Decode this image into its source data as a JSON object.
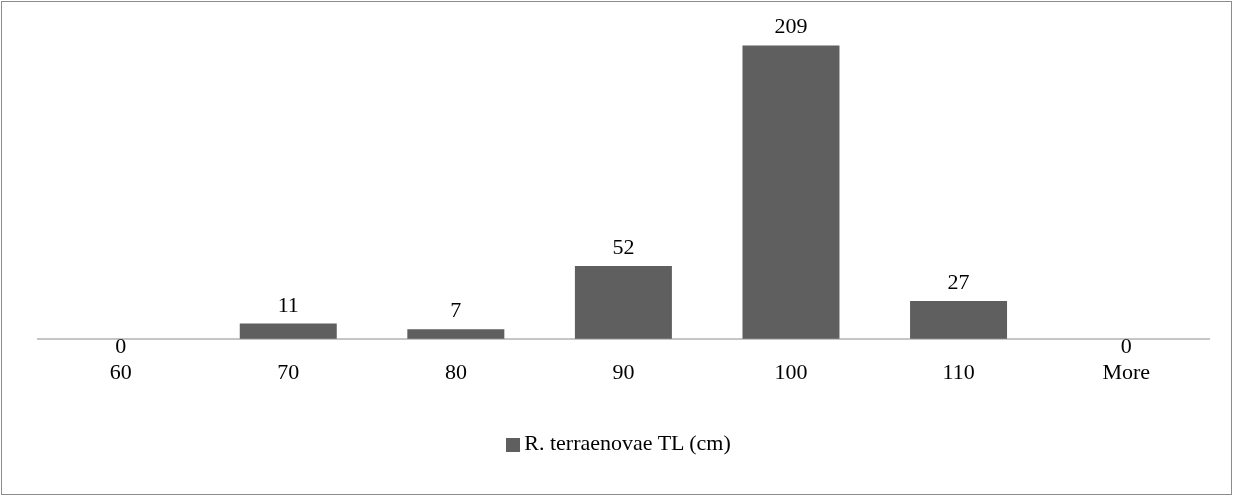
{
  "chart_data": {
    "type": "bar",
    "categories": [
      "60",
      "70",
      "80",
      "90",
      "100",
      "110",
      "More"
    ],
    "series": [
      {
        "name": "R. terraenovae TL (cm)",
        "color": "#5f5f5f",
        "values": [
          0,
          11,
          7,
          52,
          209,
          27,
          0
        ]
      }
    ],
    "data_labels": true,
    "legend": "bottom",
    "grid": false
  }
}
